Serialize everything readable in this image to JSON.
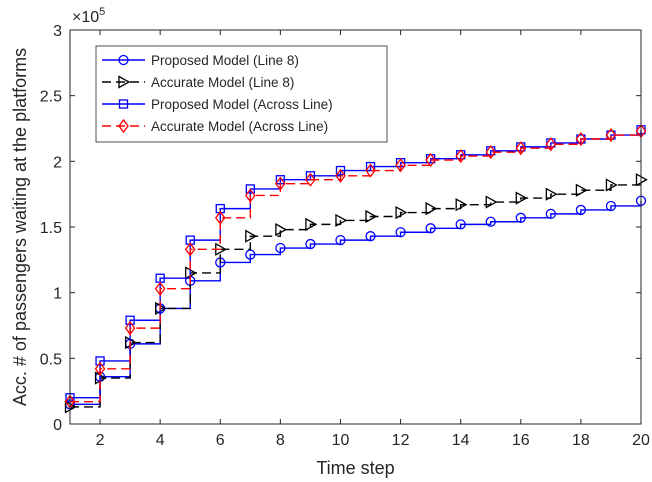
{
  "chart_data": {
    "type": "line",
    "plot_style": "stairs",
    "xlabel": "Time step",
    "ylabel": "Acc. # of passengers waiting at the platforms",
    "y_exponent_label": "×10",
    "y_exponent_power": "5",
    "xlim": [
      1,
      20
    ],
    "ylim": [
      0,
      3
    ],
    "y_scale_factor": 100000,
    "xticks": [
      2,
      4,
      6,
      8,
      10,
      12,
      14,
      16,
      18,
      20
    ],
    "xtick_labels": [
      "2",
      "4",
      "6",
      "8",
      "10",
      "12",
      "14",
      "16",
      "18",
      "20"
    ],
    "yticks": [
      0,
      0.5,
      1,
      1.5,
      2,
      2.5,
      3
    ],
    "ytick_labels": [
      "0",
      "0.5",
      "1",
      "1.5",
      "2",
      "2.5",
      "3"
    ],
    "grid": false,
    "legend_position": "top-left",
    "x": [
      1,
      2,
      3,
      4,
      5,
      6,
      7,
      8,
      9,
      10,
      11,
      12,
      13,
      14,
      15,
      16,
      17,
      18,
      19,
      20
    ],
    "series": [
      {
        "name": "Proposed Model (Line 8)",
        "color": "#0000ff",
        "line": "solid",
        "marker": "circle",
        "values": [
          0.15,
          0.36,
          0.61,
          0.88,
          1.09,
          1.23,
          1.29,
          1.34,
          1.37,
          1.4,
          1.43,
          1.46,
          1.49,
          1.52,
          1.54,
          1.57,
          1.6,
          1.63,
          1.66,
          1.7
        ]
      },
      {
        "name": "Accurate Model (Line 8)",
        "color": "#000000",
        "line": "dashed",
        "marker": "triangle-right",
        "values": [
          0.13,
          0.35,
          0.62,
          0.88,
          1.15,
          1.33,
          1.43,
          1.48,
          1.52,
          1.55,
          1.58,
          1.61,
          1.64,
          1.67,
          1.69,
          1.72,
          1.75,
          1.78,
          1.82,
          1.86
        ]
      },
      {
        "name": "Proposed Model (Across Line)",
        "color": "#0000ff",
        "line": "solid",
        "marker": "square",
        "values": [
          0.2,
          0.48,
          0.79,
          1.11,
          1.4,
          1.64,
          1.79,
          1.86,
          1.89,
          1.93,
          1.96,
          1.99,
          2.02,
          2.05,
          2.08,
          2.11,
          2.14,
          2.17,
          2.2,
          2.24
        ]
      },
      {
        "name": "Accurate Model (Across Line)",
        "color": "#ff0000",
        "line": "dashed",
        "marker": "diamond",
        "values": [
          0.17,
          0.42,
          0.73,
          1.03,
          1.33,
          1.57,
          1.74,
          1.83,
          1.86,
          1.89,
          1.93,
          1.97,
          2.01,
          2.04,
          2.07,
          2.1,
          2.13,
          2.17,
          2.2,
          2.23
        ]
      }
    ]
  }
}
